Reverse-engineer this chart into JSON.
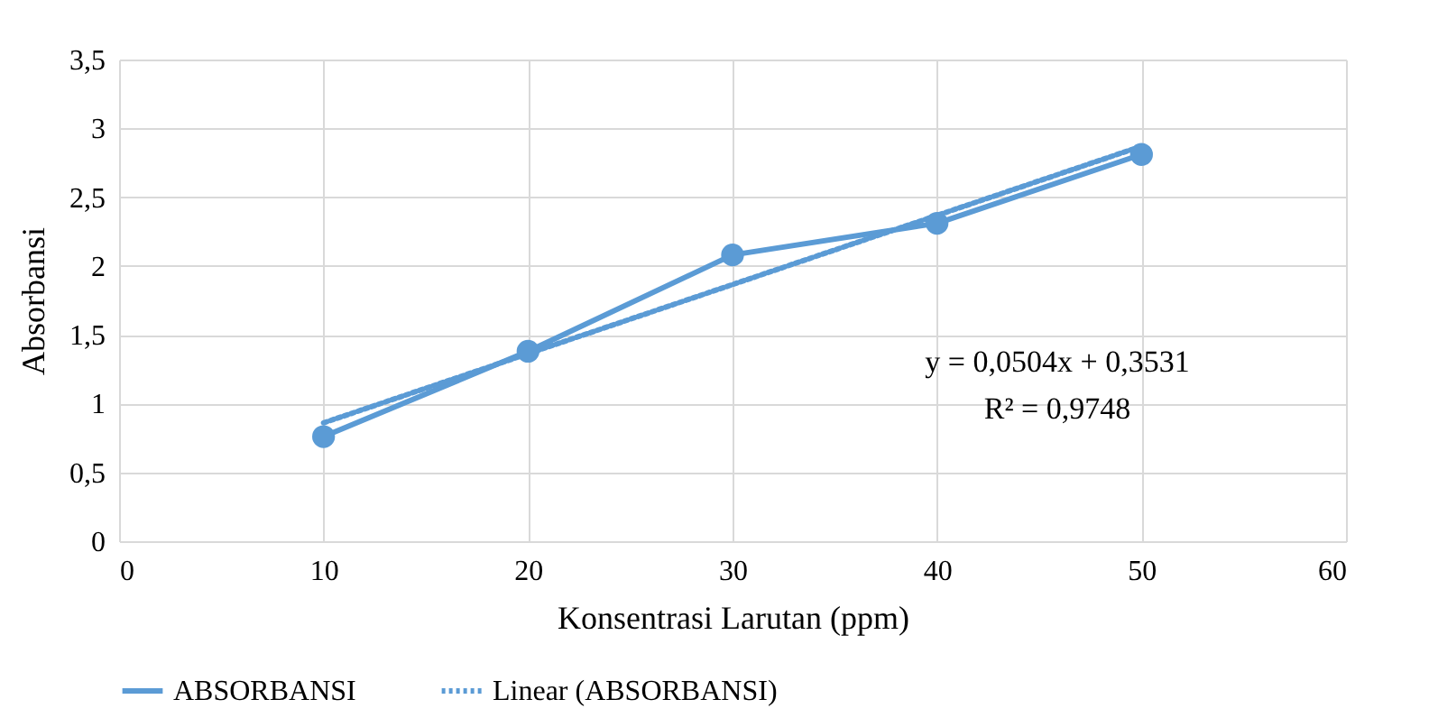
{
  "chart_data": {
    "type": "line",
    "xlabel": "Konsentrasi Larutan (ppm)",
    "ylabel": "Absorbansi",
    "x": [
      10,
      20,
      30,
      40,
      50
    ],
    "series": [
      {
        "name": "ABSORBANSI",
        "color": "#5b9bd5",
        "values": [
          0.76,
          1.38,
          2.08,
          2.31,
          2.81
        ],
        "marker": "circle",
        "line_style": "solid"
      },
      {
        "name": "Linear (ABSORBANSI)",
        "color": "#5b9bd5",
        "type": "line",
        "x": [
          10,
          50
        ],
        "values": [
          0.86,
          2.87
        ],
        "marker": "none",
        "line_style": "dotted"
      }
    ],
    "xlim": [
      0,
      60
    ],
    "xticks": [
      0,
      10,
      20,
      30,
      40,
      50,
      60
    ],
    "ylim": [
      0,
      3.5
    ],
    "yticks": [
      0,
      {
        "value": 0.5,
        "label": "0,5"
      },
      1,
      {
        "value": 1.5,
        "label": "1,5"
      },
      2,
      {
        "value": 2.5,
        "label": "2,5"
      },
      3,
      {
        "value": 3.5,
        "label": "3,5"
      }
    ],
    "annotations": [
      "y = 0,0504x + 0,3531",
      "R² = 0,9748"
    ],
    "grid": true,
    "legend": "bottom"
  }
}
